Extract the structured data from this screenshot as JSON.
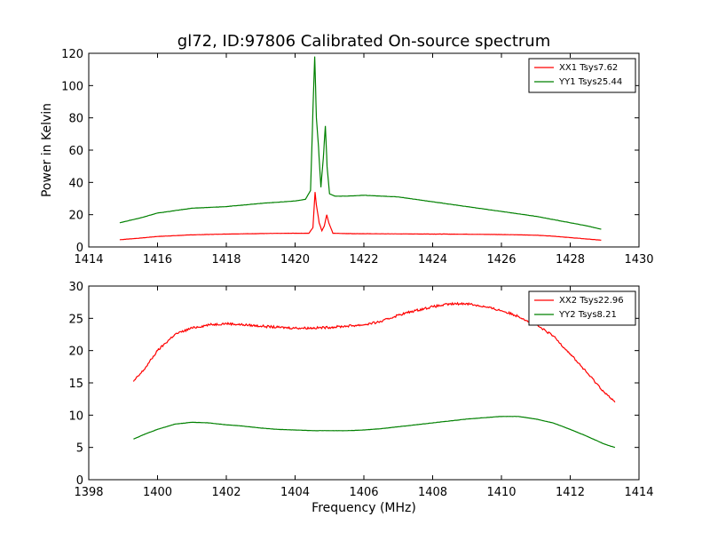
{
  "title": "gl72, ID:97806 Calibrated On-source spectrum",
  "chart_data": [
    {
      "type": "line",
      "ylabel": "Power in Kelvin",
      "xlim": [
        1414,
        1430
      ],
      "ylim": [
        0,
        120
      ],
      "xticks": [
        1414,
        1416,
        1418,
        1420,
        1422,
        1424,
        1426,
        1428,
        1430
      ],
      "yticks": [
        0,
        20,
        40,
        60,
        80,
        100,
        120
      ],
      "legend_position": "top-right",
      "series": [
        {
          "name": "XX1 Tsys7.62",
          "color": "#ff0000",
          "x": [
            1414.9,
            1415.5,
            1416.0,
            1417.0,
            1418.0,
            1419.0,
            1420.0,
            1420.4,
            1420.52,
            1420.58,
            1420.62,
            1420.7,
            1420.78,
            1420.85,
            1420.92,
            1420.98,
            1421.1,
            1421.5,
            1422.0,
            1423.0,
            1424.0,
            1425.0,
            1426.0,
            1427.0,
            1427.5,
            1428.0,
            1428.9
          ],
          "y": [
            4.5,
            5.5,
            6.5,
            7.5,
            8.0,
            8.3,
            8.5,
            8.5,
            12,
            34,
            26,
            15,
            10,
            13,
            20,
            15,
            8.5,
            8.3,
            8.2,
            8.1,
            8.0,
            7.9,
            7.7,
            7.3,
            6.7,
            5.8,
            4.2
          ]
        },
        {
          "name": "YY1 Tsys25.44",
          "color": "#008000",
          "x": [
            1414.9,
            1415.5,
            1416.0,
            1417.0,
            1418.0,
            1419.0,
            1420.0,
            1420.3,
            1420.45,
            1420.52,
            1420.57,
            1420.62,
            1420.68,
            1420.75,
            1420.82,
            1420.88,
            1420.93,
            1421.0,
            1421.15,
            1421.5,
            1422.0,
            1423.0,
            1424.0,
            1425.0,
            1426.0,
            1427.0,
            1427.5,
            1428.0,
            1428.5,
            1428.9
          ],
          "y": [
            15,
            18,
            21,
            24,
            25,
            27,
            28.5,
            29.5,
            35,
            85,
            118,
            80,
            62,
            37,
            55,
            75,
            50,
            33,
            31.5,
            31.5,
            32,
            31,
            28,
            25,
            22,
            19,
            17,
            15,
            13,
            11
          ]
        }
      ]
    },
    {
      "type": "line",
      "xlabel": "Frequency (MHz)",
      "xlim": [
        1398,
        1414
      ],
      "ylim": [
        0,
        30
      ],
      "xticks": [
        1398,
        1400,
        1402,
        1404,
        1406,
        1408,
        1410,
        1412,
        1414
      ],
      "yticks": [
        0,
        5,
        10,
        15,
        20,
        25,
        30
      ],
      "legend_position": "top-right",
      "series": [
        {
          "name": "XX2 Tsys22.96",
          "color": "#ff0000",
          "x": [
            1399.3,
            1399.6,
            1400.0,
            1400.5,
            1401.0,
            1401.5,
            1402.0,
            1402.5,
            1403.0,
            1403.5,
            1404.0,
            1404.5,
            1405.0,
            1405.5,
            1406.0,
            1406.5,
            1407.0,
            1407.5,
            1408.0,
            1408.5,
            1409.0,
            1409.5,
            1410.0,
            1410.5,
            1411.0,
            1411.5,
            1412.0,
            1412.5,
            1413.0,
            1413.3
          ],
          "y": [
            15.2,
            17,
            20,
            22.5,
            23.5,
            24,
            24.2,
            24,
            23.8,
            23.6,
            23.5,
            23.5,
            23.6,
            23.8,
            24,
            24.5,
            25.5,
            26.2,
            26.8,
            27.2,
            27.3,
            26.8,
            26.2,
            25.3,
            24,
            22.3,
            19.5,
            16.5,
            13.5,
            12
          ]
        },
        {
          "name": "YY2 Tsys8.21",
          "color": "#008000",
          "x": [
            1399.3,
            1399.7,
            1400.0,
            1400.5,
            1401.0,
            1401.5,
            1402.0,
            1402.5,
            1403.0,
            1403.5,
            1404.0,
            1404.5,
            1405.0,
            1405.5,
            1406.0,
            1406.5,
            1407.0,
            1407.5,
            1408.0,
            1408.5,
            1409.0,
            1409.5,
            1410.0,
            1410.5,
            1411.0,
            1411.5,
            1412.0,
            1412.5,
            1413.0,
            1413.3
          ],
          "y": [
            6.3,
            7.2,
            7.8,
            8.6,
            8.9,
            8.8,
            8.5,
            8.3,
            8.0,
            7.8,
            7.7,
            7.6,
            7.6,
            7.6,
            7.7,
            7.9,
            8.2,
            8.5,
            8.8,
            9.1,
            9.4,
            9.6,
            9.8,
            9.8,
            9.4,
            8.8,
            7.8,
            6.7,
            5.5,
            5.0
          ]
        }
      ]
    }
  ]
}
